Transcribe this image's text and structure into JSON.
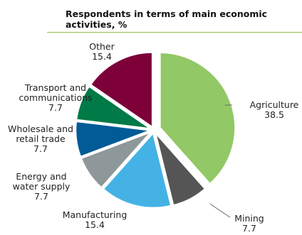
{
  "chart_data": {
    "type": "pie",
    "title": "Respondents in terms of main economic activities, %",
    "start_angle_deg": 0,
    "direction": "clockwise",
    "exploded": true,
    "slices": [
      {
        "label": [
          "Agriculture"
        ],
        "value": 38.5,
        "value_label": "38.5",
        "color": "#92c865"
      },
      {
        "label": [
          "Mining"
        ],
        "value": 7.7,
        "value_label": "7.7",
        "color": "#555555"
      },
      {
        "label": [
          "Manufacturing"
        ],
        "value": 15.4,
        "value_label": "15.4",
        "color": "#45b2e5"
      },
      {
        "label": [
          "Energy and",
          "water supply"
        ],
        "value": 7.7,
        "value_label": "7.7",
        "color": "#8e979a"
      },
      {
        "label": [
          "Wholesale and",
          "retail trade"
        ],
        "value": 7.7,
        "value_label": "7.7",
        "color": "#005b96"
      },
      {
        "label": [
          "Transport and",
          "communications"
        ],
        "value": 7.7,
        "value_label": "7.7",
        "color": "#007a46"
      },
      {
        "label": [
          "Other"
        ],
        "value": 15.4,
        "value_label": "15.4",
        "color": "#7d0039"
      }
    ]
  }
}
